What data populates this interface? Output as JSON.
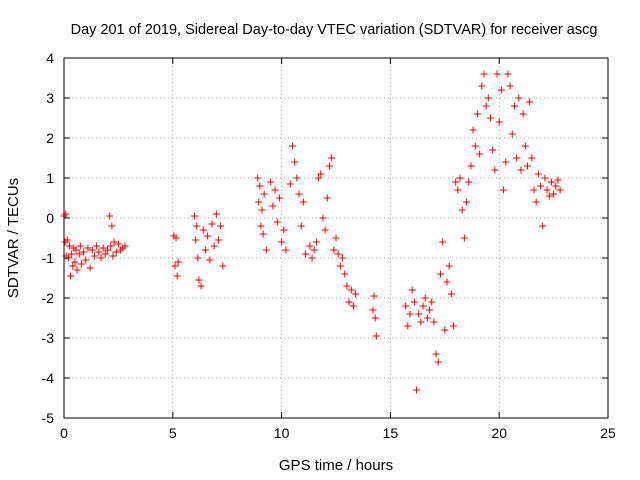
{
  "chart_data": {
    "type": "scatter",
    "title": "Day 201 of 2019, Sidereal Day-to-day VTEC variation (SDTVAR) for receiver ascg",
    "xlabel": "GPS time / hours",
    "ylabel": "SDTVAR / TECUs",
    "xlim": [
      0,
      25
    ],
    "ylim": [
      -5,
      4
    ],
    "xticks": [
      0,
      5,
      10,
      15,
      20,
      25
    ],
    "yticks": [
      -5,
      -4,
      -3,
      -2,
      -1,
      0,
      1,
      2,
      3,
      4
    ],
    "xtick_labels": [
      "0",
      "5",
      "10",
      "15",
      "20",
      "25"
    ],
    "ytick_labels": [
      "-5",
      "-4",
      "-3",
      "-2",
      "-1",
      "0",
      "1",
      "2",
      "3",
      "4"
    ],
    "grid": true,
    "marker": "+",
    "series": [
      {
        "name": "SDTVAR",
        "color": "#ff0000",
        "x": [
          0.0,
          0.05,
          0.08,
          0.1,
          0.15,
          0.2,
          0.25,
          0.3,
          0.35,
          0.4,
          0.45,
          0.5,
          0.55,
          0.6,
          0.7,
          0.75,
          0.8,
          0.9,
          1.0,
          1.1,
          1.2,
          1.3,
          1.4,
          1.5,
          1.6,
          1.7,
          1.8,
          1.9,
          2.0,
          2.1,
          2.15,
          2.2,
          2.25,
          2.3,
          2.4,
          2.5,
          2.6,
          2.7,
          2.8,
          5.05,
          5.1,
          5.15,
          5.2,
          5.25,
          6.0,
          6.05,
          6.1,
          6.15,
          6.2,
          6.3,
          6.4,
          6.5,
          6.6,
          6.7,
          6.8,
          6.9,
          7.0,
          7.1,
          7.2,
          7.3,
          8.9,
          8.95,
          9.0,
          9.05,
          9.1,
          9.15,
          9.2,
          9.3,
          9.5,
          9.6,
          9.7,
          9.8,
          9.9,
          10.0,
          10.1,
          10.2,
          10.4,
          10.5,
          10.6,
          10.7,
          10.8,
          10.9,
          11.0,
          11.1,
          11.3,
          11.4,
          11.5,
          11.6,
          11.7,
          11.8,
          11.9,
          12.0,
          12.1,
          12.2,
          12.3,
          12.4,
          12.5,
          12.6,
          12.7,
          12.8,
          12.9,
          13.0,
          13.1,
          13.2,
          13.3,
          13.4,
          14.2,
          14.25,
          14.3,
          14.35,
          15.7,
          15.8,
          15.9,
          16.0,
          16.1,
          16.2,
          16.3,
          16.4,
          16.5,
          16.6,
          16.7,
          16.8,
          16.9,
          17.0,
          17.1,
          17.2,
          17.3,
          17.4,
          17.5,
          17.6,
          17.7,
          17.8,
          17.9,
          18.0,
          18.1,
          18.2,
          18.3,
          18.4,
          18.5,
          18.6,
          18.7,
          18.8,
          18.9,
          19.0,
          19.1,
          19.2,
          19.3,
          19.4,
          19.5,
          19.6,
          19.7,
          19.8,
          19.9,
          20.0,
          20.1,
          20.2,
          20.3,
          20.4,
          20.5,
          20.6,
          20.7,
          20.8,
          20.9,
          21.0,
          21.1,
          21.2,
          21.3,
          21.4,
          21.5,
          21.6,
          21.7,
          21.8,
          21.9,
          22.0,
          22.1,
          22.2,
          22.3,
          22.4,
          22.5,
          22.6,
          22.7,
          22.8
        ],
        "y": [
          0.05,
          -0.6,
          0.1,
          -0.95,
          -0.55,
          -1.0,
          -0.7,
          -1.45,
          -0.9,
          -1.2,
          -0.75,
          -1.1,
          -0.8,
          -1.3,
          -0.9,
          -0.7,
          -1.15,
          -0.85,
          -1.05,
          -0.75,
          -1.25,
          -0.8,
          -0.95,
          -0.7,
          -0.85,
          -1.0,
          -0.75,
          -0.9,
          -0.8,
          0.05,
          -0.7,
          -0.2,
          -0.95,
          -0.6,
          -0.85,
          -0.65,
          -0.8,
          -0.75,
          -0.7,
          -0.45,
          -1.2,
          -0.5,
          -1.45,
          -1.1,
          0.05,
          -0.55,
          -0.2,
          -1.0,
          -1.55,
          -1.7,
          -0.3,
          -0.8,
          -0.45,
          -1.05,
          -0.15,
          -0.7,
          0.1,
          -0.55,
          -0.2,
          -1.2,
          1.0,
          0.4,
          0.8,
          -0.2,
          0.2,
          -0.4,
          0.6,
          -0.8,
          0.9,
          0.3,
          0.7,
          -0.1,
          0.5,
          -0.6,
          -0.3,
          -0.8,
          0.85,
          1.8,
          1.4,
          1.0,
          0.6,
          -0.2,
          0.4,
          -0.9,
          -0.7,
          -1.0,
          -0.8,
          -0.6,
          1.0,
          1.1,
          0.0,
          -0.3,
          0.5,
          1.3,
          1.5,
          -0.8,
          -0.5,
          -0.9,
          -1.2,
          -1.0,
          -1.4,
          -1.7,
          -2.1,
          -1.8,
          -2.2,
          -1.9,
          -2.3,
          -1.95,
          -2.5,
          -2.95,
          -2.2,
          -2.7,
          -2.4,
          -1.8,
          -2.1,
          -4.3,
          -2.4,
          -2.6,
          -2.2,
          -2.0,
          -2.5,
          -2.3,
          -2.1,
          -2.6,
          -3.4,
          -3.6,
          -1.4,
          -0.6,
          -2.8,
          -1.6,
          -1.2,
          -1.9,
          -2.7,
          0.9,
          0.7,
          1.0,
          0.2,
          -0.5,
          0.4,
          0.9,
          1.3,
          2.2,
          1.8,
          2.6,
          1.6,
          3.3,
          3.6,
          2.8,
          3.0,
          2.5,
          1.7,
          1.2,
          3.6,
          2.4,
          3.2,
          0.7,
          1.4,
          3.6,
          3.3,
          2.1,
          2.8,
          1.5,
          3.0,
          1.2,
          2.6,
          1.8,
          1.3,
          2.9,
          1.5,
          0.7,
          0.4,
          1.1,
          0.8,
          -0.2,
          1.0,
          0.7,
          0.55,
          0.9,
          0.6,
          0.8,
          0.95,
          0.7
        ]
      }
    ]
  }
}
